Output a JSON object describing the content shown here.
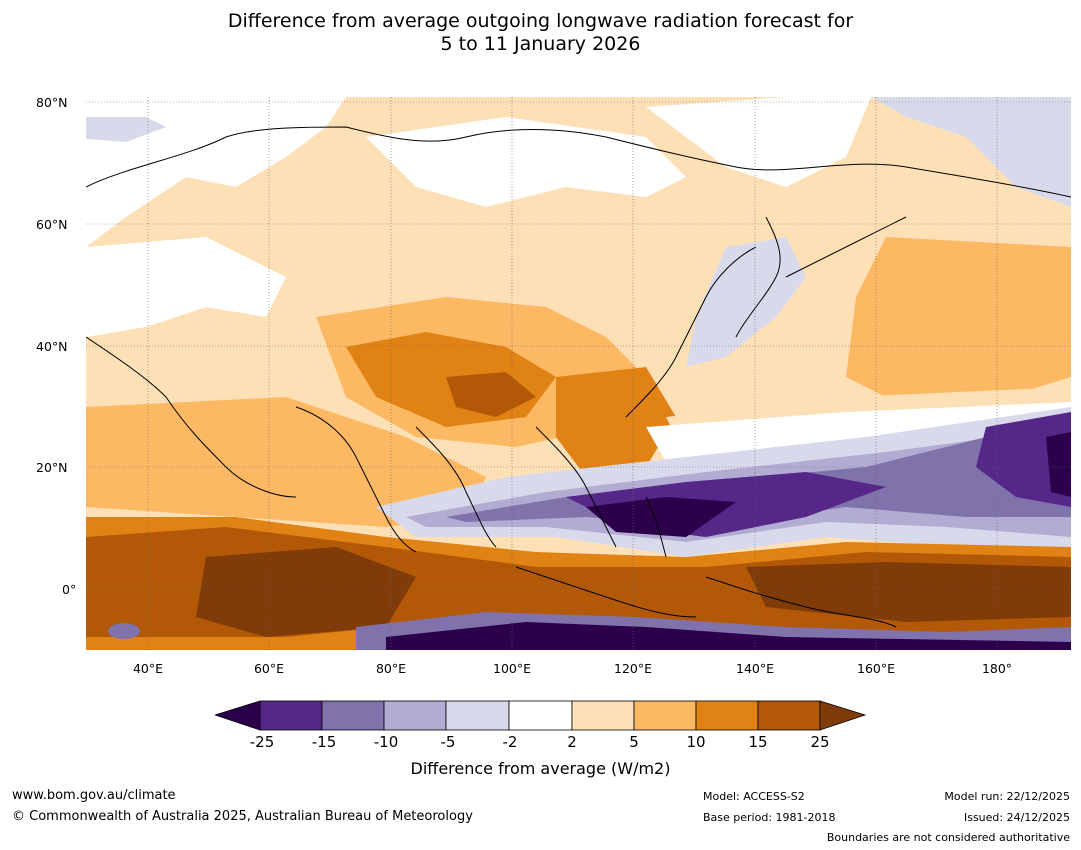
{
  "title": {
    "line1": "Difference from average outgoing longwave radiation forecast for",
    "line2": "5 to 11 January 2026"
  },
  "map": {
    "lat_labels": [
      "80°N",
      "60°N",
      "40°N",
      "20°N",
      "0°"
    ],
    "lon_labels": [
      "40°E",
      "60°E",
      "80°E",
      "100°E",
      "120°E",
      "140°E",
      "160°E",
      "180°"
    ]
  },
  "colorbar": {
    "ticks": [
      "-25",
      "-15",
      "-10",
      "-5",
      "-2",
      "2",
      "5",
      "10",
      "15",
      "25"
    ],
    "label": "Difference from average (W/m2)",
    "colors": {
      "lt_neg25": "#2d004b",
      "neg25_neg15": "#542788",
      "neg15_neg10": "#8073ac",
      "neg10_neg5": "#b2abd2",
      "neg5_neg2": "#d8daeb",
      "neg2_2": "#ffffff",
      "p2_5": "#fee0b6",
      "p5_10": "#fdb863",
      "p10_15": "#e08214",
      "p15_25": "#b35806",
      "gt_25": "#7f3b08"
    }
  },
  "footer": {
    "website": "www.bom.gov.au/climate",
    "copyright": "© Commonwealth of Australia 2025, Australian Bureau of Meteorology",
    "model": "Model: ACCESS-S2",
    "base_period": "Base period: 1981-2018",
    "model_run": "Model run: 22/12/2025",
    "issued": "Issued: 24/12/2025",
    "disclaimer": "Boundaries are not considered authoritative"
  }
}
